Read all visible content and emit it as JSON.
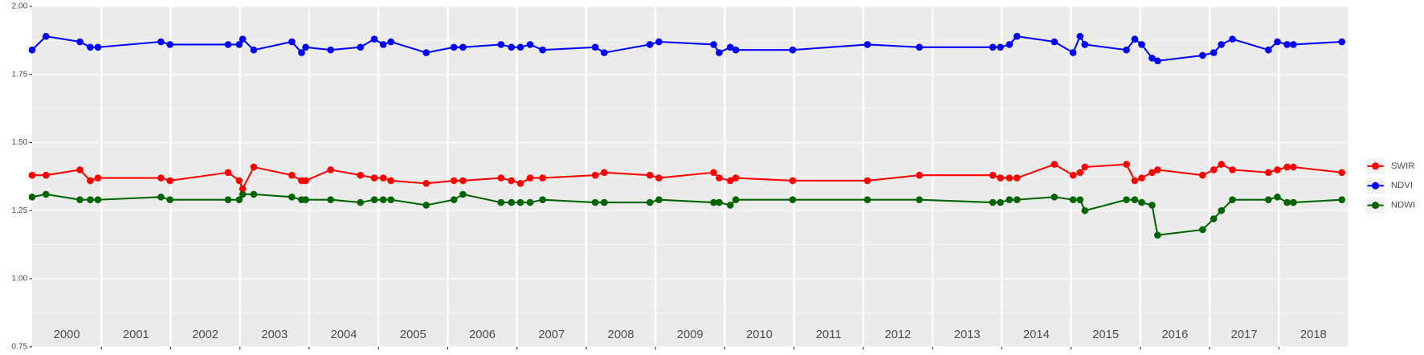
{
  "chart_data": {
    "type": "line",
    "x": [
      2000.0,
      2000.2,
      2000.69,
      2000.84,
      2000.95,
      2001.86,
      2001.99,
      2002.83,
      2002.99,
      2003.04,
      2003.2,
      2003.75,
      2003.89,
      2003.95,
      2004.31,
      2004.74,
      2004.94,
      2005.07,
      2005.18,
      2005.69,
      2006.09,
      2006.22,
      2006.77,
      2006.92,
      2007.05,
      2007.19,
      2007.37,
      2008.13,
      2008.26,
      2008.92,
      2009.05,
      2009.84,
      2009.92,
      2010.08,
      2010.16,
      2010.98,
      2012.06,
      2012.81,
      2013.87,
      2013.98,
      2014.11,
      2014.22,
      2014.76,
      2015.03,
      2015.13,
      2015.2,
      2015.8,
      2015.92,
      2016.02,
      2016.17,
      2016.25,
      2016.9,
      2017.06,
      2017.17,
      2017.33,
      2017.85,
      2017.98,
      2018.12,
      2018.21,
      2018.91
    ],
    "series": [
      {
        "name": "SWIR",
        "color": "#ff0000",
        "values": [
          1.38,
          1.38,
          1.4,
          1.36,
          1.37,
          1.37,
          1.36,
          1.39,
          1.36,
          1.33,
          1.41,
          1.38,
          1.36,
          1.36,
          1.4,
          1.38,
          1.37,
          1.37,
          1.36,
          1.35,
          1.36,
          1.36,
          1.37,
          1.36,
          1.35,
          1.37,
          1.37,
          1.38,
          1.39,
          1.38,
          1.37,
          1.39,
          1.37,
          1.36,
          1.37,
          1.36,
          1.36,
          1.38,
          1.38,
          1.37,
          1.37,
          1.37,
          1.42,
          1.38,
          1.39,
          1.41,
          1.42,
          1.36,
          1.37,
          1.39,
          1.4,
          1.38,
          1.4,
          1.42,
          1.4,
          1.39,
          1.4,
          1.41,
          1.41,
          1.39
        ]
      },
      {
        "name": "NDVI",
        "color": "#0000ff",
        "values": [
          1.84,
          1.89,
          1.87,
          1.85,
          1.85,
          1.87,
          1.86,
          1.86,
          1.86,
          1.88,
          1.84,
          1.87,
          1.83,
          1.85,
          1.84,
          1.85,
          1.88,
          1.86,
          1.87,
          1.83,
          1.85,
          1.85,
          1.86,
          1.85,
          1.85,
          1.86,
          1.84,
          1.85,
          1.83,
          1.86,
          1.87,
          1.86,
          1.83,
          1.85,
          1.84,
          1.84,
          1.86,
          1.85,
          1.85,
          1.85,
          1.86,
          1.89,
          1.87,
          1.83,
          1.89,
          1.86,
          1.84,
          1.88,
          1.86,
          1.81,
          1.8,
          1.82,
          1.83,
          1.86,
          1.88,
          1.84,
          1.87,
          1.86,
          1.86,
          1.87
        ]
      },
      {
        "name": "NDWI",
        "color": "#006400",
        "values": [
          1.3,
          1.31,
          1.29,
          1.29,
          1.29,
          1.3,
          1.29,
          1.29,
          1.29,
          1.31,
          1.31,
          1.3,
          1.29,
          1.29,
          1.29,
          1.28,
          1.29,
          1.29,
          1.29,
          1.27,
          1.29,
          1.31,
          1.28,
          1.28,
          1.28,
          1.28,
          1.29,
          1.28,
          1.28,
          1.28,
          1.29,
          1.28,
          1.28,
          1.27,
          1.29,
          1.29,
          1.29,
          1.29,
          1.28,
          1.28,
          1.29,
          1.29,
          1.3,
          1.29,
          1.29,
          1.25,
          1.29,
          1.29,
          1.28,
          1.27,
          1.16,
          1.18,
          1.22,
          1.25,
          1.29,
          1.29,
          1.3,
          1.28,
          1.28,
          1.29
        ]
      }
    ],
    "xlim": [
      2000,
      2019
    ],
    "xticks": [
      {
        "value": 2000.5,
        "label": "2000"
      },
      {
        "value": 2001.5,
        "label": "2001"
      },
      {
        "value": 2002.5,
        "label": "2002"
      },
      {
        "value": 2003.5,
        "label": "2003"
      },
      {
        "value": 2004.5,
        "label": "2004"
      },
      {
        "value": 2005.5,
        "label": "2005"
      },
      {
        "value": 2006.5,
        "label": "2006"
      },
      {
        "value": 2007.5,
        "label": "2007"
      },
      {
        "value": 2008.5,
        "label": "2008"
      },
      {
        "value": 2009.5,
        "label": "2009"
      },
      {
        "value": 2010.5,
        "label": "2010"
      },
      {
        "value": 2011.5,
        "label": "2011"
      },
      {
        "value": 2012.5,
        "label": "2012"
      },
      {
        "value": 2013.5,
        "label": "2013"
      },
      {
        "value": 2014.5,
        "label": "2014"
      },
      {
        "value": 2015.5,
        "label": "2015"
      },
      {
        "value": 2016.5,
        "label": "2016"
      },
      {
        "value": 2017.5,
        "label": "2017"
      },
      {
        "value": 2018.5,
        "label": "2018"
      }
    ],
    "ylim": [
      0.75,
      2.0
    ],
    "yticks": [
      {
        "value": 0.75,
        "label": "0.75"
      },
      {
        "value": 1.0,
        "label": "1.00"
      },
      {
        "value": 1.25,
        "label": "1.25"
      },
      {
        "value": 1.5,
        "label": "1.50"
      },
      {
        "value": 1.75,
        "label": "1.75"
      },
      {
        "value": 2.0,
        "label": "2.00"
      }
    ],
    "grid": true
  }
}
